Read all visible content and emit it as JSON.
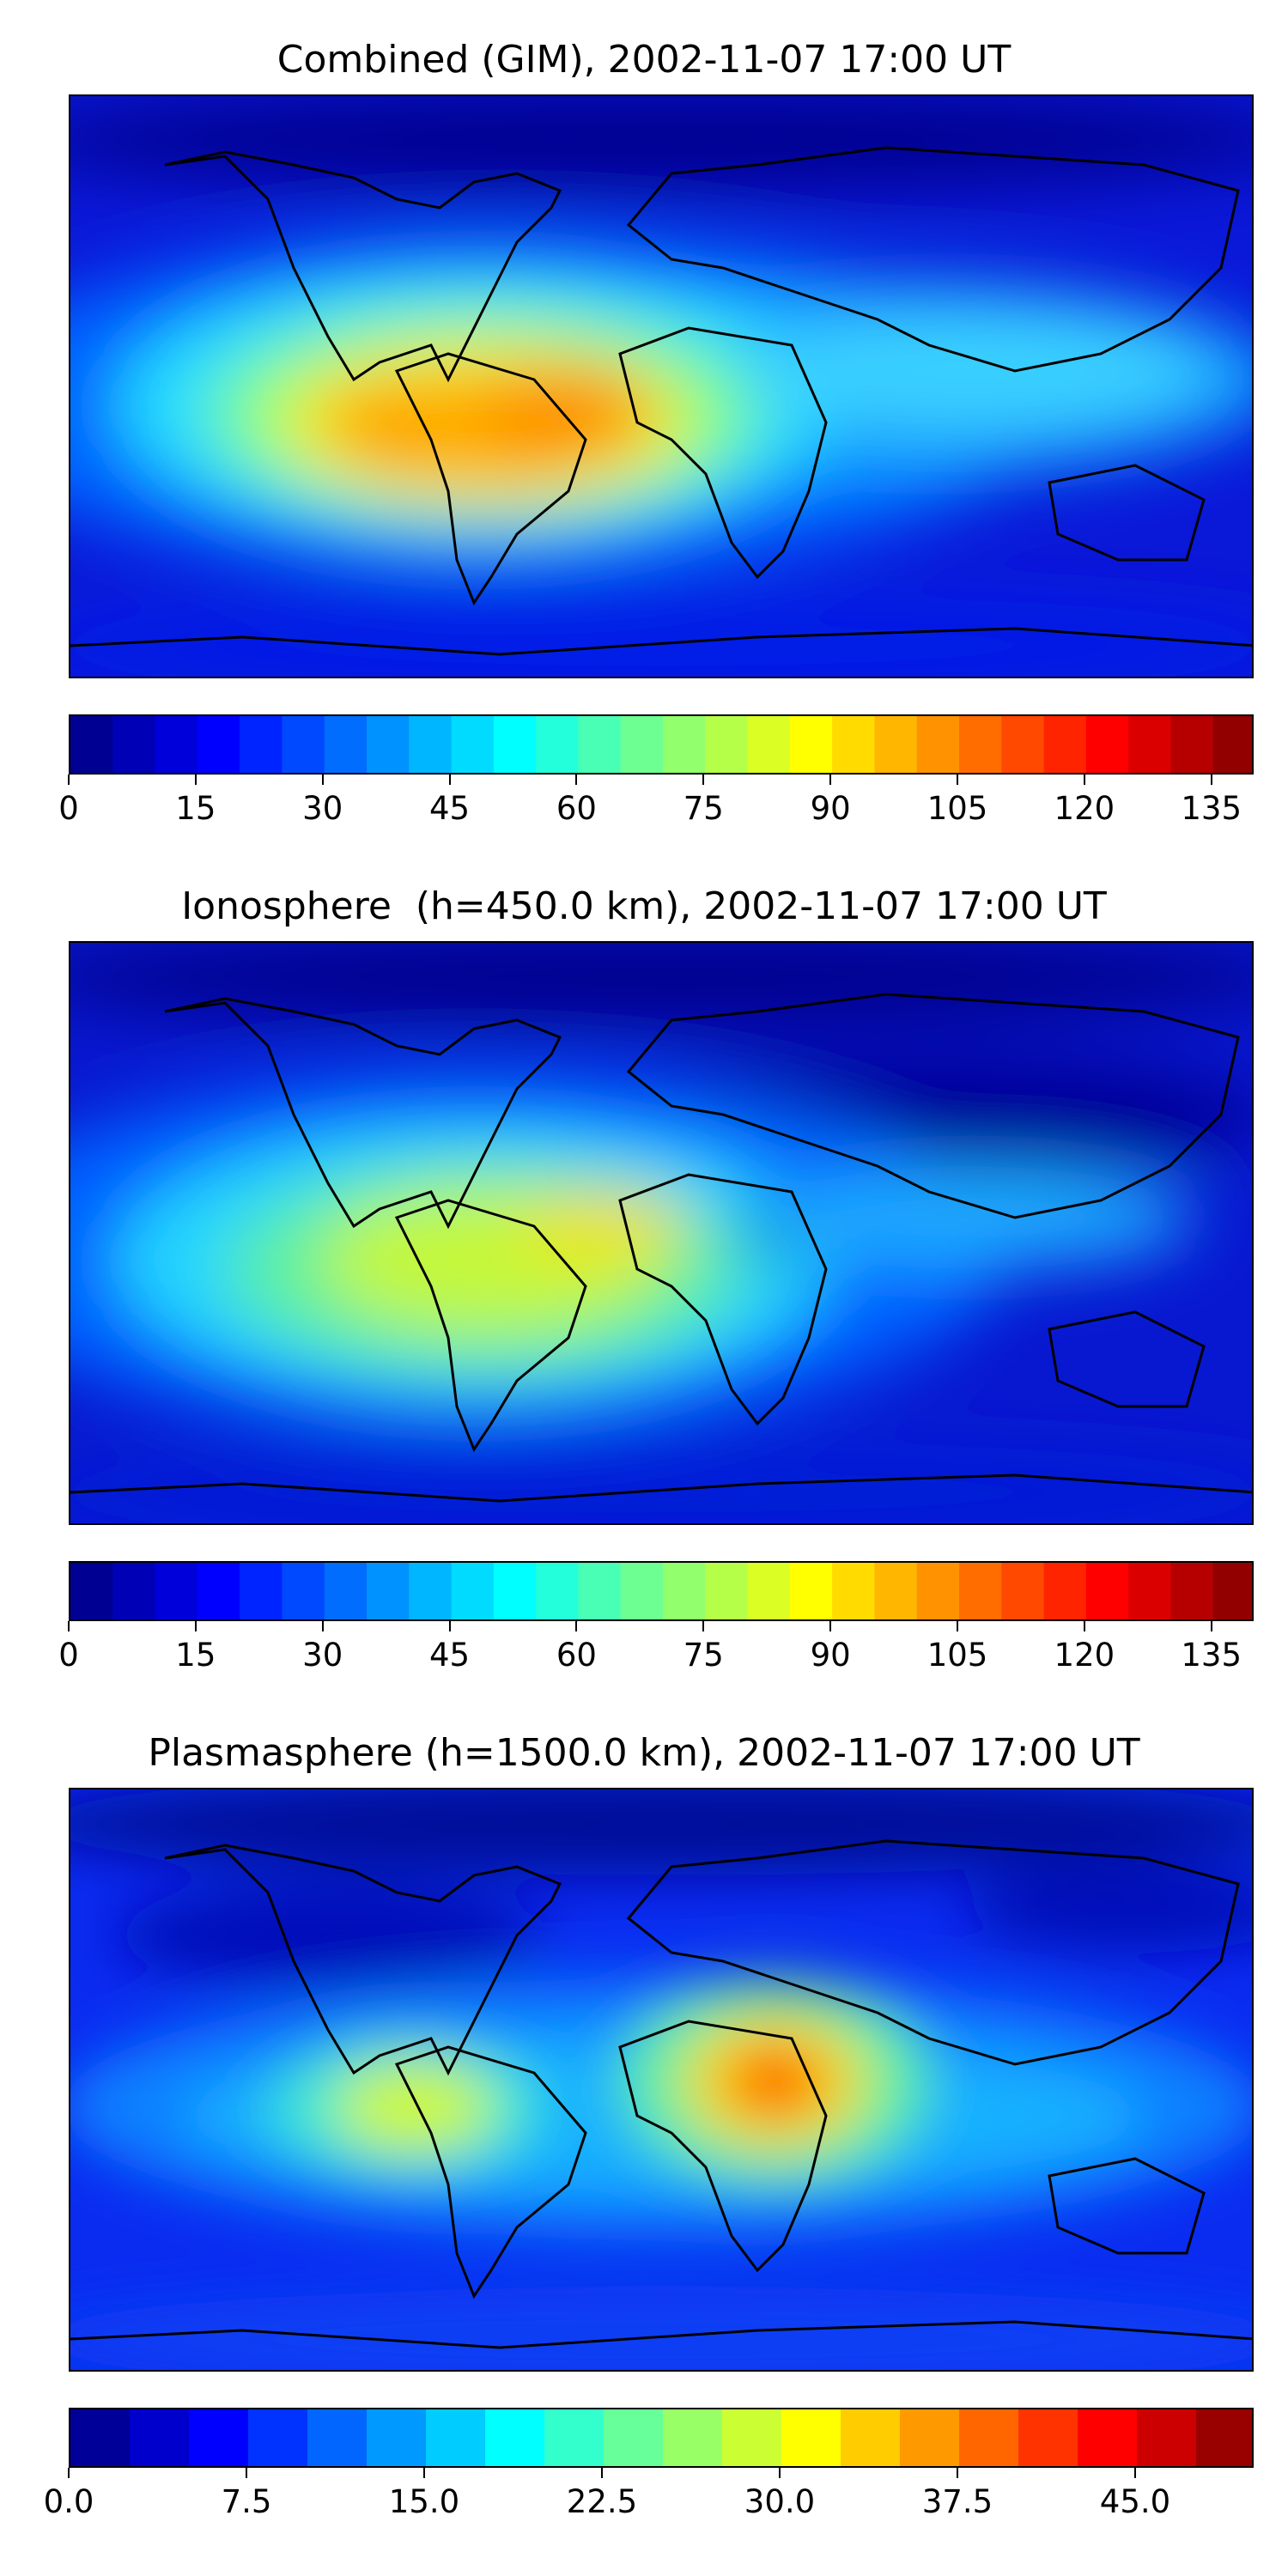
{
  "figure": {
    "panels": [
      {
        "title": "Combined (GIM), 2002-11-07 17:00 UT",
        "colorbar": {
          "min": 0,
          "max": 140,
          "levels": 28,
          "ticks": [
            "0",
            "15",
            "30",
            "45",
            "60",
            "75",
            "90",
            "105",
            "120",
            "135"
          ],
          "tick_values": [
            0,
            15,
            30,
            45,
            60,
            75,
            90,
            105,
            120,
            135
          ]
        }
      },
      {
        "title": "Ionosphere  (h=450.0 km), 2002-11-07 17:00 UT",
        "colorbar": {
          "min": 0,
          "max": 140,
          "levels": 28,
          "ticks": [
            "0",
            "15",
            "30",
            "45",
            "60",
            "75",
            "90",
            "105",
            "120",
            "135"
          ],
          "tick_values": [
            0,
            15,
            30,
            45,
            60,
            75,
            90,
            105,
            120,
            135
          ]
        }
      },
      {
        "title": "Plasmasphere (h=1500.0 km), 2002-11-07 17:00 UT",
        "colorbar": {
          "min": 0,
          "max": 50,
          "levels": 20,
          "ticks": [
            "0.0",
            "7.5",
            "15.0",
            "22.5",
            "30.0",
            "37.5",
            "45.0"
          ],
          "tick_values": [
            0,
            7.5,
            15,
            22.5,
            30,
            37.5,
            45
          ]
        }
      }
    ],
    "colormap": "jet",
    "projection": "equirectangular"
  }
}
